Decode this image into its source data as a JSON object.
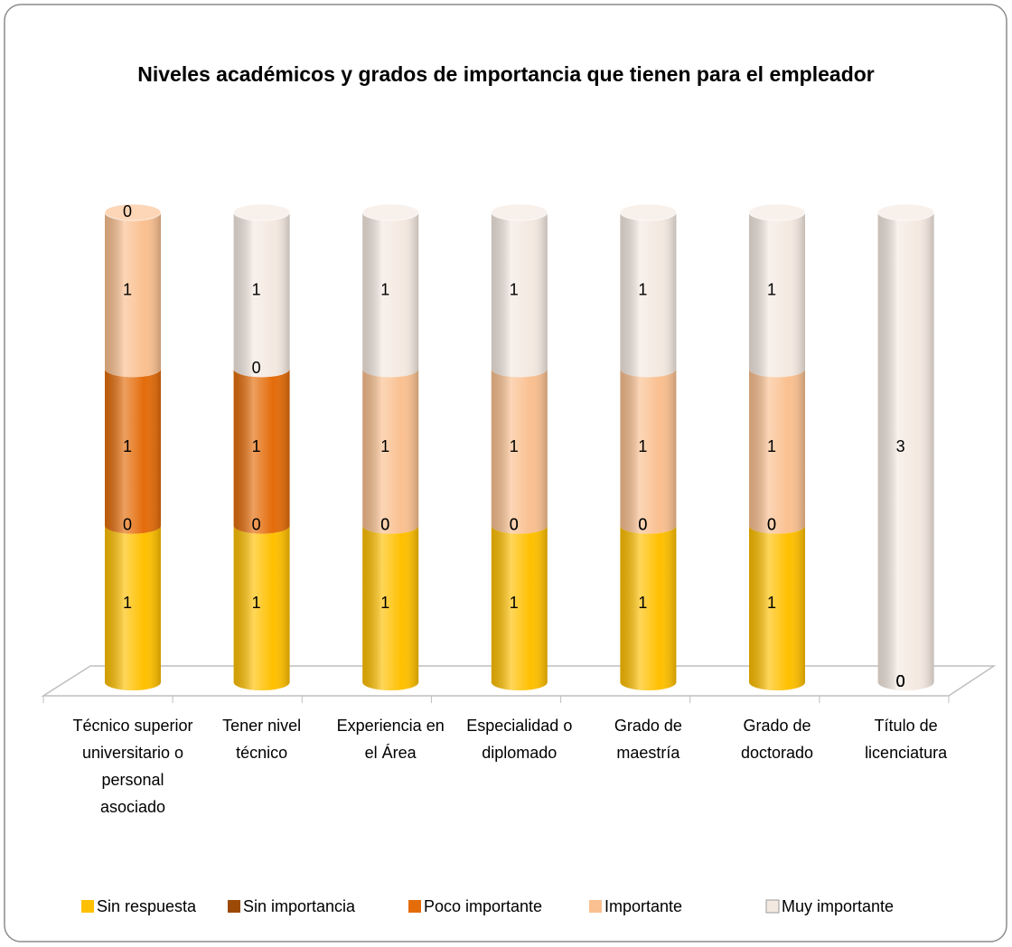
{
  "chart_data": {
    "type": "bar3d_stacked",
    "title": "Niveles académicos y grados de importancia que tienen para el empleador",
    "categories": [
      "Técnico superior universitario o personal asociado",
      "Tener nivel técnico",
      "Experiencia en el Área",
      "Especialidad o diplomado",
      "Grado de maestría",
      "Grado de doctorado",
      "Título de licenciatura"
    ],
    "series": [
      {
        "name": "Sin respuesta",
        "color": "#ffc000",
        "values": [
          1,
          1,
          1,
          1,
          1,
          1,
          0
        ]
      },
      {
        "name": "Sin importancia",
        "color": "#9c4a06",
        "values": [
          0,
          0,
          0,
          0,
          0,
          0,
          0
        ]
      },
      {
        "name": "Poco importante",
        "color": "#e46c0a",
        "values": [
          1,
          1,
          0,
          0,
          0,
          0,
          0
        ]
      },
      {
        "name": "Importante",
        "color": "#fac090",
        "values": [
          1,
          0,
          1,
          1,
          1,
          1,
          0
        ]
      },
      {
        "name": "Muy importante",
        "color": "#f4e9e1",
        "values": [
          0,
          1,
          1,
          1,
          1,
          1,
          3
        ]
      }
    ],
    "legend": "bottom"
  }
}
